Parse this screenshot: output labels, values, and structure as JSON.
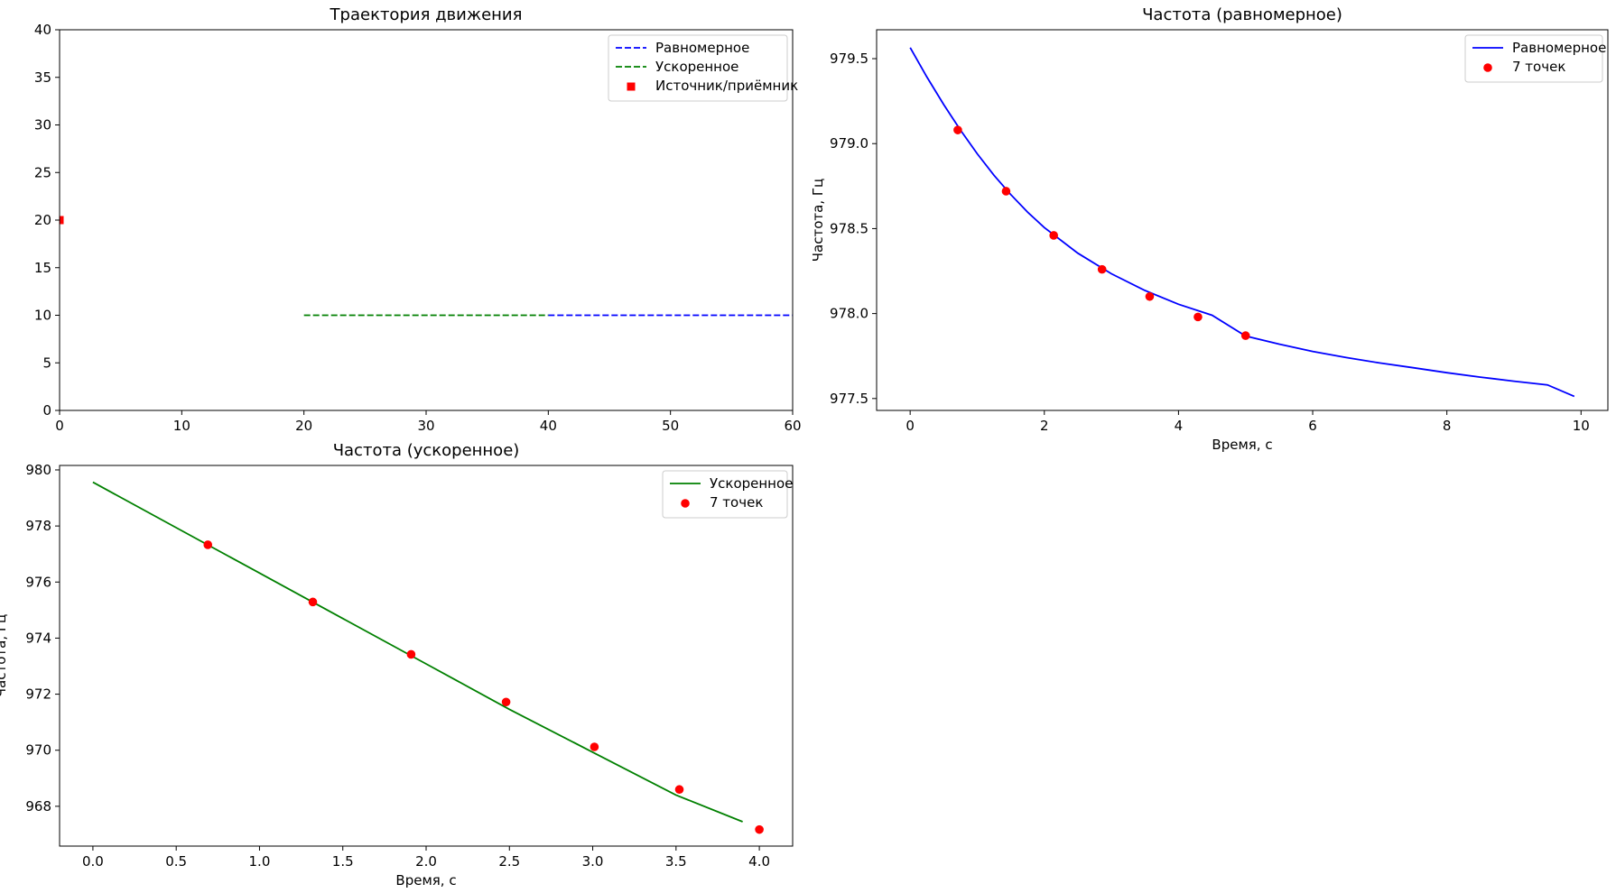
{
  "chart_data": [
    {
      "type": "line",
      "title": "Траектория движения",
      "xlabel": "",
      "ylabel": "",
      "xlim": [
        0,
        60
      ],
      "ylim": [
        0,
        40
      ],
      "xticks": [
        0,
        10,
        20,
        30,
        40,
        50,
        60
      ],
      "yticks": [
        0,
        5,
        10,
        15,
        20,
        25,
        30,
        35,
        40
      ],
      "legend_position": "top-right",
      "series": [
        {
          "name": "Равномерное",
          "kind": "line",
          "dash": "dashed",
          "color": "#0000ff",
          "x": [
            40,
            60
          ],
          "y": [
            10,
            10
          ]
        },
        {
          "name": "Ускоренное",
          "kind": "line",
          "dash": "dashed",
          "color": "#008000",
          "x": [
            20,
            40
          ],
          "y": [
            10,
            10
          ]
        },
        {
          "name": "Источник/приёмник",
          "kind": "marker-square",
          "color": "#ff0000",
          "x": [
            0
          ],
          "y": [
            20
          ]
        }
      ]
    },
    {
      "type": "line",
      "title": "Частота (равномерное)",
      "xlabel": "Время, с",
      "ylabel": "Частота, Гц",
      "xlim": [
        -0.5,
        10.4
      ],
      "ylim": [
        977.43,
        979.67
      ],
      "xticks": [
        0,
        2,
        4,
        6,
        8,
        10
      ],
      "yticks": [
        977.5,
        978.0,
        978.5,
        979.0,
        979.5
      ],
      "ytick_labels": [
        "977.5",
        "978.0",
        "978.5",
        "979.0",
        "979.5"
      ],
      "legend_position": "top-right",
      "series": [
        {
          "name": "Равномерное",
          "kind": "line",
          "color": "#0000ff",
          "x": [
            0,
            0.25,
            0.5,
            0.75,
            1.0,
            1.25,
            1.5,
            1.75,
            2.0,
            2.5,
            3.0,
            3.5,
            4.0,
            4.5,
            5.0,
            5.5,
            6.0,
            6.5,
            7.0,
            7.5,
            8.0,
            8.5,
            9.0,
            9.5,
            9.9
          ],
          "y": [
            979.565,
            979.392,
            979.23,
            979.079,
            978.94,
            978.814,
            978.7,
            978.597,
            978.506,
            978.355,
            978.234,
            978.136,
            978.055,
            977.99,
            977.868,
            977.82,
            977.777,
            977.741,
            977.709,
            977.681,
            977.652,
            977.626,
            977.602,
            977.58,
            977.513
          ]
        },
        {
          "name": "7 точек",
          "kind": "scatter",
          "color": "#ff0000",
          "x": [
            0.71,
            1.43,
            2.14,
            2.86,
            3.57,
            4.29,
            5.0
          ],
          "y": [
            979.08,
            978.72,
            978.46,
            978.26,
            978.1,
            977.98,
            977.87
          ]
        }
      ]
    },
    {
      "type": "line",
      "title": "Частота (ускоренное)",
      "xlabel": "Время, с",
      "ylabel": "Частота, Гц",
      "xlim": [
        -0.2,
        4.2
      ],
      "ylim": [
        966.58,
        980.16
      ],
      "xticks": [
        0.0,
        0.5,
        1.0,
        1.5,
        2.0,
        2.5,
        3.0,
        3.5,
        4.0
      ],
      "xtick_labels": [
        "0.0",
        "0.5",
        "1.0",
        "1.5",
        "2.0",
        "2.5",
        "3.0",
        "3.5",
        "4.0"
      ],
      "yticks": [
        968,
        970,
        972,
        974,
        976,
        978,
        980
      ],
      "legend_position": "top-right",
      "series": [
        {
          "name": "Ускоренное",
          "kind": "line",
          "color": "#008000",
          "x": [
            0,
            0.5,
            1.0,
            1.5,
            2.0,
            2.5,
            3.0,
            3.5,
            3.9
          ],
          "y": [
            979.56,
            977.94,
            976.32,
            974.7,
            973.08,
            971.46,
            969.93,
            968.4,
            967.45
          ]
        },
        {
          "name": "7 точек",
          "kind": "scatter",
          "color": "#ff0000",
          "x": [
            0.69,
            1.32,
            1.91,
            2.48,
            3.01,
            3.52,
            4.0
          ],
          "y": [
            977.33,
            975.29,
            973.42,
            971.72,
            970.12,
            968.6,
            967.17
          ]
        }
      ]
    }
  ]
}
